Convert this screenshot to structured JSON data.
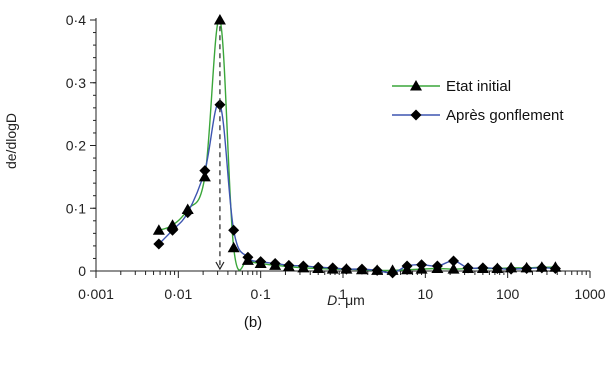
{
  "chart_data": {
    "type": "line",
    "title": "",
    "caption": "(b)",
    "xlabel_var": "D",
    "xlabel_unit": ": μm",
    "ylabel": "de/dlogD",
    "x_scale": "log",
    "xlim": [
      0.001,
      1000
    ],
    "ylim": [
      0,
      0.4
    ],
    "x_ticks": [
      0.001,
      0.01,
      0.1,
      1,
      10,
      100,
      1000
    ],
    "x_tick_labels": [
      "0·001",
      "0·01",
      "0·1",
      "1",
      "10",
      "100",
      "1000"
    ],
    "y_ticks": [
      0,
      0.1,
      0.2,
      0.3,
      0.4
    ],
    "y_tick_labels": [
      "0",
      "0·1",
      "0·2",
      "0·3",
      "0·4"
    ],
    "grid": false,
    "legend_position": "right",
    "annotation": "dashed arrow at D ≈ 0.032 μm",
    "annotation_x": 0.032,
    "series": [
      {
        "name": "Etat initial",
        "color": "#3aa63a",
        "marker": "triangle",
        "x": [
          0.0058,
          0.0085,
          0.013,
          0.021,
          0.032,
          0.047,
          0.07,
          0.1,
          0.15,
          0.22,
          0.33,
          0.5,
          0.75,
          1.1,
          1.7,
          2.6,
          4,
          6,
          9,
          14,
          22,
          33,
          50,
          75,
          110,
          170,
          260,
          380
        ],
        "y": [
          0.065,
          0.073,
          0.098,
          0.15,
          0.4,
          0.037,
          0.017,
          0.012,
          0.009,
          0.007,
          0.005,
          0.004,
          0.003,
          0.003,
          0.002,
          0.001,
          0.001,
          0.002,
          0.003,
          0.004,
          0.003,
          0.004,
          0.004,
          0.004,
          0.005,
          0.005,
          0.006,
          0.006
        ]
      },
      {
        "name": "Après gonflement",
        "color": "#3d55b0",
        "marker": "diamond",
        "x": [
          0.0058,
          0.0085,
          0.013,
          0.021,
          0.032,
          0.047,
          0.07,
          0.1,
          0.15,
          0.22,
          0.33,
          0.5,
          0.75,
          1.1,
          1.7,
          2.6,
          4,
          6,
          9,
          14,
          22,
          33,
          50,
          75,
          110,
          170,
          260,
          380
        ],
        "y": [
          0.043,
          0.065,
          0.093,
          0.16,
          0.265,
          0.065,
          0.022,
          0.015,
          0.012,
          0.009,
          0.008,
          0.006,
          0.005,
          0.003,
          0.003,
          0.001,
          -0.003,
          0.008,
          0.01,
          0.008,
          0.016,
          0.005,
          0.005,
          0.004,
          0.003,
          0.004,
          0.005,
          0.004
        ]
      }
    ]
  }
}
